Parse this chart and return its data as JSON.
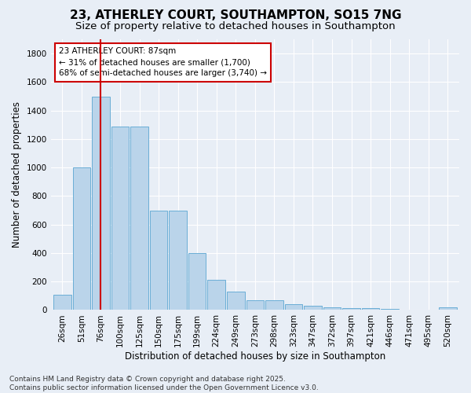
{
  "title": "23, ATHERLEY COURT, SOUTHAMPTON, SO15 7NG",
  "subtitle": "Size of property relative to detached houses in Southampton",
  "xlabel": "Distribution of detached houses by size in Southampton",
  "ylabel": "Number of detached properties",
  "categories": [
    "26sqm",
    "51sqm",
    "76sqm",
    "100sqm",
    "125sqm",
    "150sqm",
    "175sqm",
    "199sqm",
    "224sqm",
    "249sqm",
    "273sqm",
    "298sqm",
    "323sqm",
    "347sqm",
    "372sqm",
    "397sqm",
    "421sqm",
    "446sqm",
    "471sqm",
    "495sqm",
    "520sqm"
  ],
  "values": [
    105,
    1000,
    1500,
    1290,
    1290,
    700,
    700,
    400,
    210,
    130,
    70,
    70,
    40,
    30,
    20,
    15,
    15,
    10,
    5,
    5,
    20
  ],
  "bar_color": "#bad4ea",
  "bar_edge_color": "#6aaed6",
  "vline_x": 2,
  "vline_color": "#cc0000",
  "annotation_text": "23 ATHERLEY COURT: 87sqm\n← 31% of detached houses are smaller (1,700)\n68% of semi-detached houses are larger (3,740) →",
  "annotation_box_color": "white",
  "annotation_box_edge": "#cc0000",
  "bg_color": "#e8eef6",
  "grid_color": "#ffffff",
  "footer": "Contains HM Land Registry data © Crown copyright and database right 2025.\nContains public sector information licensed under the Open Government Licence v3.0.",
  "ylim": [
    0,
    1900
  ],
  "yticks": [
    0,
    200,
    400,
    600,
    800,
    1000,
    1200,
    1400,
    1600,
    1800
  ],
  "title_fontsize": 11,
  "subtitle_fontsize": 9.5,
  "axis_label_fontsize": 8.5,
  "tick_fontsize": 7.5,
  "annotation_fontsize": 7.5,
  "footer_fontsize": 6.5
}
